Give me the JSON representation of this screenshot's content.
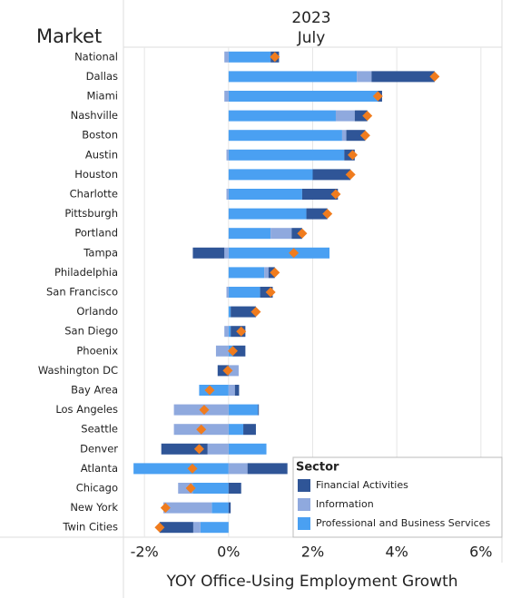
{
  "chart_data": {
    "type": "stacked-bar-horizontal",
    "year": "2023",
    "month": "July",
    "y_label": "Market",
    "x_label": "YOY Office-Using Employment Growth",
    "legend_title": "Sector",
    "categories": [
      "National",
      "Dallas",
      "Miami",
      "Nashville",
      "Boston",
      "Austin",
      "Houston",
      "Charlotte",
      "Pittsburgh",
      "Portland",
      "Tampa",
      "Philadelphia",
      "San Francisco",
      "Orlando",
      "San Diego",
      "Phoenix",
      "Washington DC",
      "Bay Area",
      "Los Angeles",
      "Seattle",
      "Denver",
      "Atlanta",
      "Chicago",
      "New York",
      "Twin Cities"
    ],
    "series": [
      {
        "name": "Financial Activities",
        "color": "#2f5597",
        "values": [
          0.2,
          1.5,
          0.1,
          0.3,
          0.45,
          0.25,
          0.9,
          0.85,
          0.5,
          0.25,
          -0.75,
          0.15,
          0.3,
          0.6,
          0.35,
          0.3,
          -0.26,
          0.1,
          0.02,
          0.3,
          -1.1,
          0.95,
          0.3,
          0.05,
          -0.8
        ]
      },
      {
        "name": "Information",
        "color": "#8fa9de",
        "values": [
          -0.1,
          0.35,
          -0.1,
          0.45,
          0.1,
          -0.05,
          0,
          -0.05,
          0,
          0.5,
          -0.1,
          0.1,
          -0.05,
          0,
          -0.1,
          -0.3,
          0.24,
          0.15,
          -1.3,
          -1.3,
          -0.5,
          0.45,
          -0.35,
          -1.15,
          -0.17
        ]
      },
      {
        "name": "Professional and Business Services",
        "color": "#4aa0f2",
        "values": [
          1.0,
          3.05,
          3.55,
          2.55,
          2.7,
          2.75,
          2.0,
          1.75,
          1.85,
          1.0,
          2.4,
          0.85,
          0.75,
          0.05,
          0.05,
          0.1,
          0,
          -0.7,
          0.7,
          0.35,
          0.9,
          -2.26,
          -0.85,
          -0.4,
          -0.67
        ]
      }
    ],
    "marker_color": "#f07c1e",
    "xlim": [
      -2.5,
      6.5
    ],
    "xticks": [
      {
        "value": -2,
        "label": "-2%"
      },
      {
        "value": 0,
        "label": "0%"
      },
      {
        "value": 2,
        "label": "2%"
      },
      {
        "value": 4,
        "label": "4%"
      },
      {
        "value": 6,
        "label": "6%"
      }
    ],
    "grid": true
  }
}
